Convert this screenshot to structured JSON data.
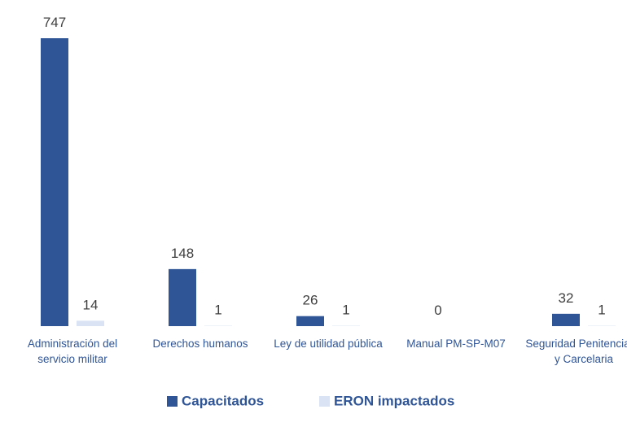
{
  "chart_data": {
    "type": "bar",
    "categories": [
      "Administración del servicio militar",
      "Derechos humanos",
      "Ley de utilidad pública",
      "Manual PM-SP-M07",
      "Seguridad Penitenciaria y Carcelaria"
    ],
    "series": [
      {
        "name": "Capacitados",
        "color": "#2f5597",
        "values": [
          747,
          148,
          26,
          0,
          32
        ]
      },
      {
        "name": "ERON impactados",
        "color": "#dae3f3",
        "values": [
          14,
          1,
          1,
          null,
          1
        ]
      }
    ],
    "legend": "bottom"
  }
}
